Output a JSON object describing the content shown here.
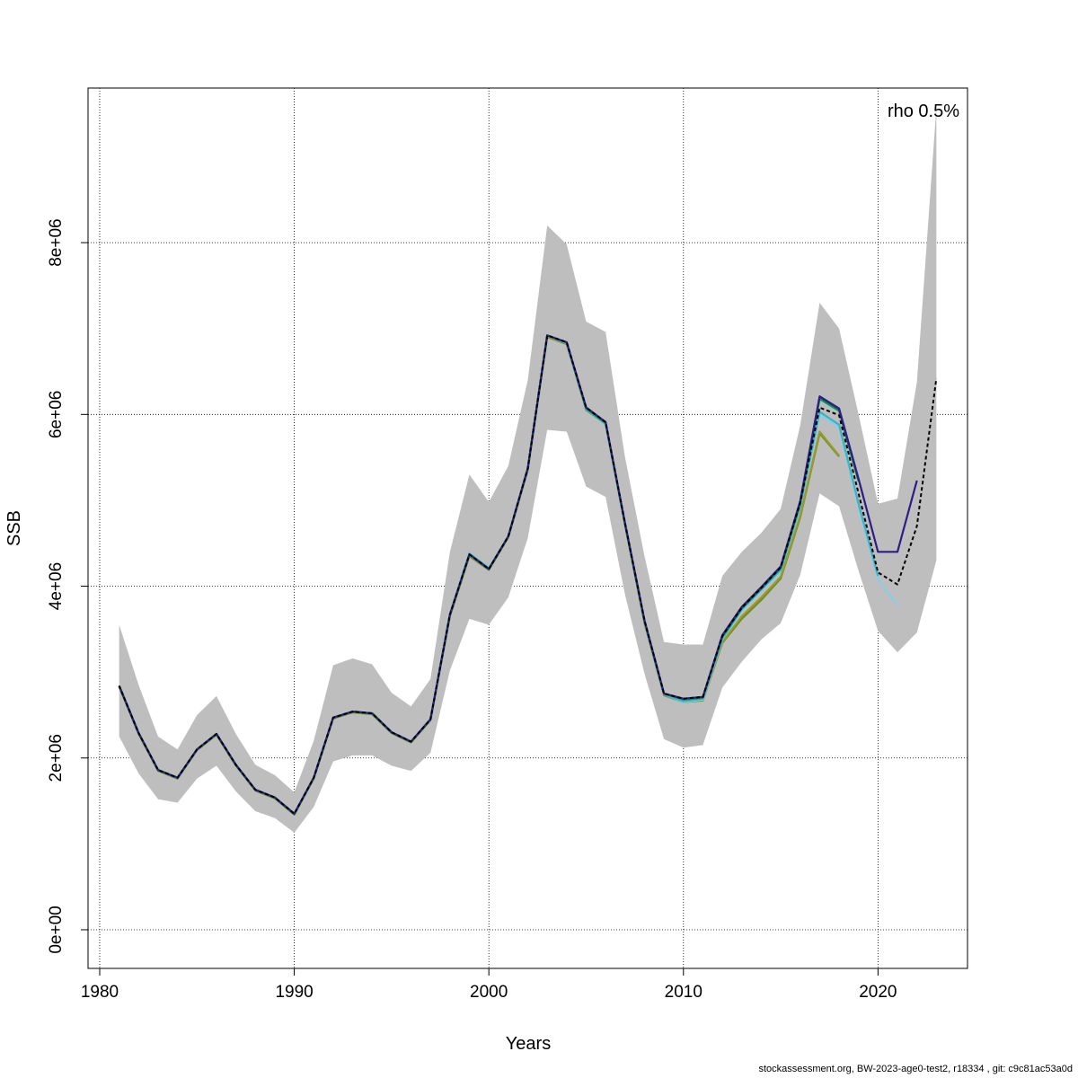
{
  "chart_data": {
    "type": "line",
    "title": "",
    "xlabel": "Years",
    "ylabel": "SSB",
    "xlim": [
      1979.4,
      2024.6
    ],
    "ylim": [
      -450000,
      9800000
    ],
    "x_ticks": [
      1980,
      1990,
      2000,
      2010,
      2020
    ],
    "y_ticks": [
      0,
      2000000,
      4000000,
      6000000,
      8000000
    ],
    "y_tick_labels": [
      "0e+00",
      "2e+06",
      "4e+06",
      "6e+06",
      "8e+06"
    ],
    "grid": true,
    "annotation": "rho 0.5%",
    "colors": {
      "band": "#bebebe",
      "base": "#000000",
      "peel1": "#2b1f86",
      "peel2": "#87ceeb",
      "peel3": "#1f5f4a",
      "peel4": "#3bb3c3",
      "peel5": "#9a9a2e",
      "peel6": "#00a05a",
      "peel7": "#6b8e23"
    },
    "confidence_band": {
      "x": [
        1981,
        1982,
        1983,
        1984,
        1985,
        1986,
        1987,
        1988,
        1989,
        1990,
        1991,
        1992,
        1993,
        1994,
        1995,
        1996,
        1997,
        1998,
        1999,
        2000,
        2001,
        2002,
        2003,
        2004,
        2005,
        2006,
        2007,
        2008,
        2009,
        2010,
        2011,
        2012,
        2013,
        2014,
        2015,
        2016,
        2017,
        2018,
        2019,
        2020,
        2021,
        2022,
        2023
      ],
      "upper": [
        3550000,
        2850000,
        2250000,
        2100000,
        2500000,
        2720000,
        2280000,
        1920000,
        1800000,
        1600000,
        2200000,
        3080000,
        3160000,
        3090000,
        2760000,
        2600000,
        2920000,
        4400000,
        5300000,
        4980000,
        5400000,
        6400000,
        8200000,
        7980000,
        7080000,
        6960000,
        5500000,
        4350000,
        3350000,
        3320000,
        3320000,
        4120000,
        4400000,
        4620000,
        4900000,
        5870000,
        7300000,
        7000000,
        6000000,
        4960000,
        5020000,
        6380000,
        9570000
      ],
      "lower": [
        2250000,
        1820000,
        1520000,
        1480000,
        1760000,
        1910000,
        1610000,
        1380000,
        1300000,
        1130000,
        1430000,
        1960000,
        2030000,
        2030000,
        1910000,
        1850000,
        2060000,
        3020000,
        3620000,
        3550000,
        3870000,
        4560000,
        5820000,
        5800000,
        5160000,
        5040000,
        3900000,
        2980000,
        2220000,
        2120000,
        2150000,
        2820000,
        3120000,
        3380000,
        3570000,
        4130000,
        5080000,
        4930000,
        4180000,
        3480000,
        3230000,
        3460000,
        4300000
      ]
    },
    "series": [
      {
        "color_key": "peel7",
        "x": [
          1981,
          1982,
          1983,
          1984,
          1985,
          1986,
          1987,
          1988,
          1989,
          1990,
          1991,
          1992,
          1993,
          1994,
          1995,
          1996,
          1997,
          1998,
          1999,
          2000,
          2001,
          2002,
          2003,
          2004,
          2005,
          2006,
          2007,
          2008,
          2009,
          2010,
          2011,
          2012,
          2013,
          2014,
          2015,
          2016,
          2017,
          2018
        ],
        "y": [
          2830000,
          2280000,
          1850000,
          1760000,
          2090000,
          2270000,
          1910000,
          1620000,
          1530000,
          1340000,
          1760000,
          2460000,
          2530000,
          2510000,
          2290000,
          2180000,
          2440000,
          3650000,
          4350000,
          4190000,
          4570000,
          5350000,
          6900000,
          6820000,
          6050000,
          5890000,
          4710000,
          3570000,
          2730000,
          2650000,
          2670000,
          3340000,
          3620000,
          3840000,
          4090000,
          4800000,
          5780000,
          5510000
        ]
      },
      {
        "color_key": "peel5",
        "x": [
          1981,
          1982,
          1983,
          1984,
          1985,
          1986,
          1987,
          1988,
          1989,
          1990,
          1991,
          1992,
          1993,
          1994,
          1995,
          1996,
          1997,
          1998,
          1999,
          2000,
          2001,
          2002,
          2003,
          2004,
          2005,
          2006,
          2007,
          2008,
          2009,
          2010,
          2011,
          2012,
          2013,
          2014,
          2015,
          2016,
          2017,
          2018
        ],
        "y": [
          2840000,
          2290000,
          1860000,
          1770000,
          2100000,
          2280000,
          1920000,
          1630000,
          1540000,
          1350000,
          1770000,
          2470000,
          2540000,
          2520000,
          2300000,
          2190000,
          2450000,
          3660000,
          4360000,
          4200000,
          4580000,
          5360000,
          6910000,
          6830000,
          6060000,
          5900000,
          4720000,
          3580000,
          2740000,
          2660000,
          2680000,
          3350000,
          3650000,
          3870000,
          4110000,
          4820000,
          5800000,
          5520000
        ]
      },
      {
        "color_key": "peel2",
        "x": [
          1981,
          1982,
          1983,
          1984,
          1985,
          1986,
          1987,
          1988,
          1989,
          1990,
          1991,
          1992,
          1993,
          1994,
          1995,
          1996,
          1997,
          1998,
          1999,
          2000,
          2001,
          2002,
          2003,
          2004,
          2005,
          2006,
          2007,
          2008,
          2009,
          2010,
          2011,
          2012,
          2013,
          2014,
          2015,
          2016,
          2017,
          2018,
          2019,
          2020,
          2021
        ],
        "y": [
          2840000,
          2290000,
          1860000,
          1770000,
          2100000,
          2280000,
          1920000,
          1630000,
          1540000,
          1350000,
          1770000,
          2470000,
          2540000,
          2520000,
          2300000,
          2190000,
          2450000,
          3680000,
          4390000,
          4210000,
          4580000,
          5370000,
          6920000,
          6830000,
          6060000,
          5890000,
          4720000,
          3590000,
          2740000,
          2650000,
          2680000,
          3380000,
          3720000,
          3950000,
          4180000,
          4920000,
          6000000,
          5850000,
          4920000,
          4080000,
          3780000
        ]
      },
      {
        "color_key": "peel4",
        "x": [
          1981,
          1982,
          1983,
          1984,
          1985,
          1986,
          1987,
          1988,
          1989,
          1990,
          1991,
          1992,
          1993,
          1994,
          1995,
          1996,
          1997,
          1998,
          1999,
          2000,
          2001,
          2002,
          2003,
          2004,
          2005,
          2006,
          2007,
          2008,
          2009,
          2010,
          2011,
          2012,
          2013,
          2014,
          2015,
          2016,
          2017,
          2018,
          2019,
          2020
        ],
        "y": [
          2840000,
          2290000,
          1860000,
          1770000,
          2100000,
          2280000,
          1920000,
          1630000,
          1540000,
          1350000,
          1770000,
          2470000,
          2540000,
          2520000,
          2300000,
          2190000,
          2450000,
          3670000,
          4380000,
          4210000,
          4580000,
          5370000,
          6920000,
          6830000,
          6060000,
          5890000,
          4720000,
          3590000,
          2740000,
          2660000,
          2690000,
          3390000,
          3730000,
          3960000,
          4190000,
          4930000,
          6030000,
          5880000,
          4960000,
          4120000
        ]
      },
      {
        "color_key": "peel6",
        "x": [
          1981,
          1982,
          1983,
          1984,
          1985,
          1986,
          1987,
          1988,
          1989,
          1990,
          1991,
          1992,
          1993,
          1994,
          1995,
          1996,
          1997,
          1998,
          1999,
          2000,
          2001,
          2002,
          2003,
          2004,
          2005,
          2006,
          2007,
          2008,
          2009,
          2010,
          2011,
          2012,
          2013,
          2014,
          2015,
          2016,
          2017,
          2018,
          2019
        ],
        "y": [
          2840000,
          2290000,
          1860000,
          1770000,
          2100000,
          2280000,
          1920000,
          1630000,
          1540000,
          1350000,
          1770000,
          2470000,
          2540000,
          2520000,
          2300000,
          2190000,
          2450000,
          3670000,
          4370000,
          4200000,
          4580000,
          5370000,
          6920000,
          6840000,
          6070000,
          5900000,
          4720000,
          3590000,
          2750000,
          2680000,
          2700000,
          3410000,
          3740000,
          3970000,
          4210000,
          4960000,
          6180000,
          6040000,
          5220000
        ]
      },
      {
        "color_key": "peel3",
        "x": [
          1981,
          1982,
          1983,
          1984,
          1985,
          1986,
          1987,
          1988,
          1989,
          1990,
          1991,
          1992,
          1993,
          1994,
          1995,
          1996,
          1997,
          1998,
          1999,
          2000,
          2001,
          2002,
          2003,
          2004,
          2005,
          2006,
          2007,
          2008,
          2009,
          2010,
          2011,
          2012,
          2013,
          2014,
          2015,
          2016,
          2017,
          2018,
          2019
        ],
        "y": [
          2840000,
          2290000,
          1860000,
          1770000,
          2100000,
          2280000,
          1920000,
          1630000,
          1540000,
          1350000,
          1770000,
          2470000,
          2540000,
          2520000,
          2300000,
          2190000,
          2450000,
          3670000,
          4370000,
          4200000,
          4580000,
          5370000,
          6920000,
          6840000,
          6080000,
          5910000,
          4730000,
          3600000,
          2750000,
          2690000,
          2710000,
          3420000,
          3750000,
          3980000,
          4220000,
          4980000,
          6200000,
          6060000,
          5240000
        ]
      },
      {
        "color_key": "peel1",
        "x": [
          1981,
          1982,
          1983,
          1984,
          1985,
          1986,
          1987,
          1988,
          1989,
          1990,
          1991,
          1992,
          1993,
          1994,
          1995,
          1996,
          1997,
          1998,
          1999,
          2000,
          2001,
          2002,
          2003,
          2004,
          2005,
          2006,
          2007,
          2008,
          2009,
          2010,
          2011,
          2012,
          2013,
          2014,
          2015,
          2016,
          2017,
          2018,
          2019,
          2020,
          2021,
          2022
        ],
        "y": [
          2840000,
          2290000,
          1860000,
          1770000,
          2100000,
          2280000,
          1920000,
          1630000,
          1540000,
          1350000,
          1770000,
          2470000,
          2540000,
          2520000,
          2300000,
          2190000,
          2450000,
          3670000,
          4370000,
          4200000,
          4580000,
          5370000,
          6920000,
          6840000,
          6080000,
          5910000,
          4730000,
          3600000,
          2750000,
          2690000,
          2710000,
          3430000,
          3760000,
          3990000,
          4230000,
          4990000,
          6210000,
          6070000,
          5250000,
          4400000,
          4400000,
          5230000
        ]
      },
      {
        "color_key": "base",
        "dashed": true,
        "x": [
          1981,
          1982,
          1983,
          1984,
          1985,
          1986,
          1987,
          1988,
          1989,
          1990,
          1991,
          1992,
          1993,
          1994,
          1995,
          1996,
          1997,
          1998,
          1999,
          2000,
          2001,
          2002,
          2003,
          2004,
          2005,
          2006,
          2007,
          2008,
          2009,
          2010,
          2011,
          2012,
          2013,
          2014,
          2015,
          2016,
          2017,
          2018,
          2019,
          2020,
          2021,
          2022,
          2023
        ],
        "y": [
          2840000,
          2290000,
          1860000,
          1770000,
          2100000,
          2280000,
          1920000,
          1630000,
          1540000,
          1350000,
          1770000,
          2470000,
          2540000,
          2520000,
          2300000,
          2190000,
          2450000,
          3670000,
          4370000,
          4200000,
          4580000,
          5370000,
          6920000,
          6840000,
          6080000,
          5910000,
          4730000,
          3600000,
          2750000,
          2690000,
          2710000,
          3420000,
          3750000,
          3980000,
          4220000,
          4970000,
          6080000,
          5990000,
          5080000,
          4160000,
          4020000,
          4700000,
          6420000
        ]
      }
    ]
  },
  "footer": "stockassessment.org, BW-2023-age0-test2, r18334 , git: c9c81ac53a0d"
}
